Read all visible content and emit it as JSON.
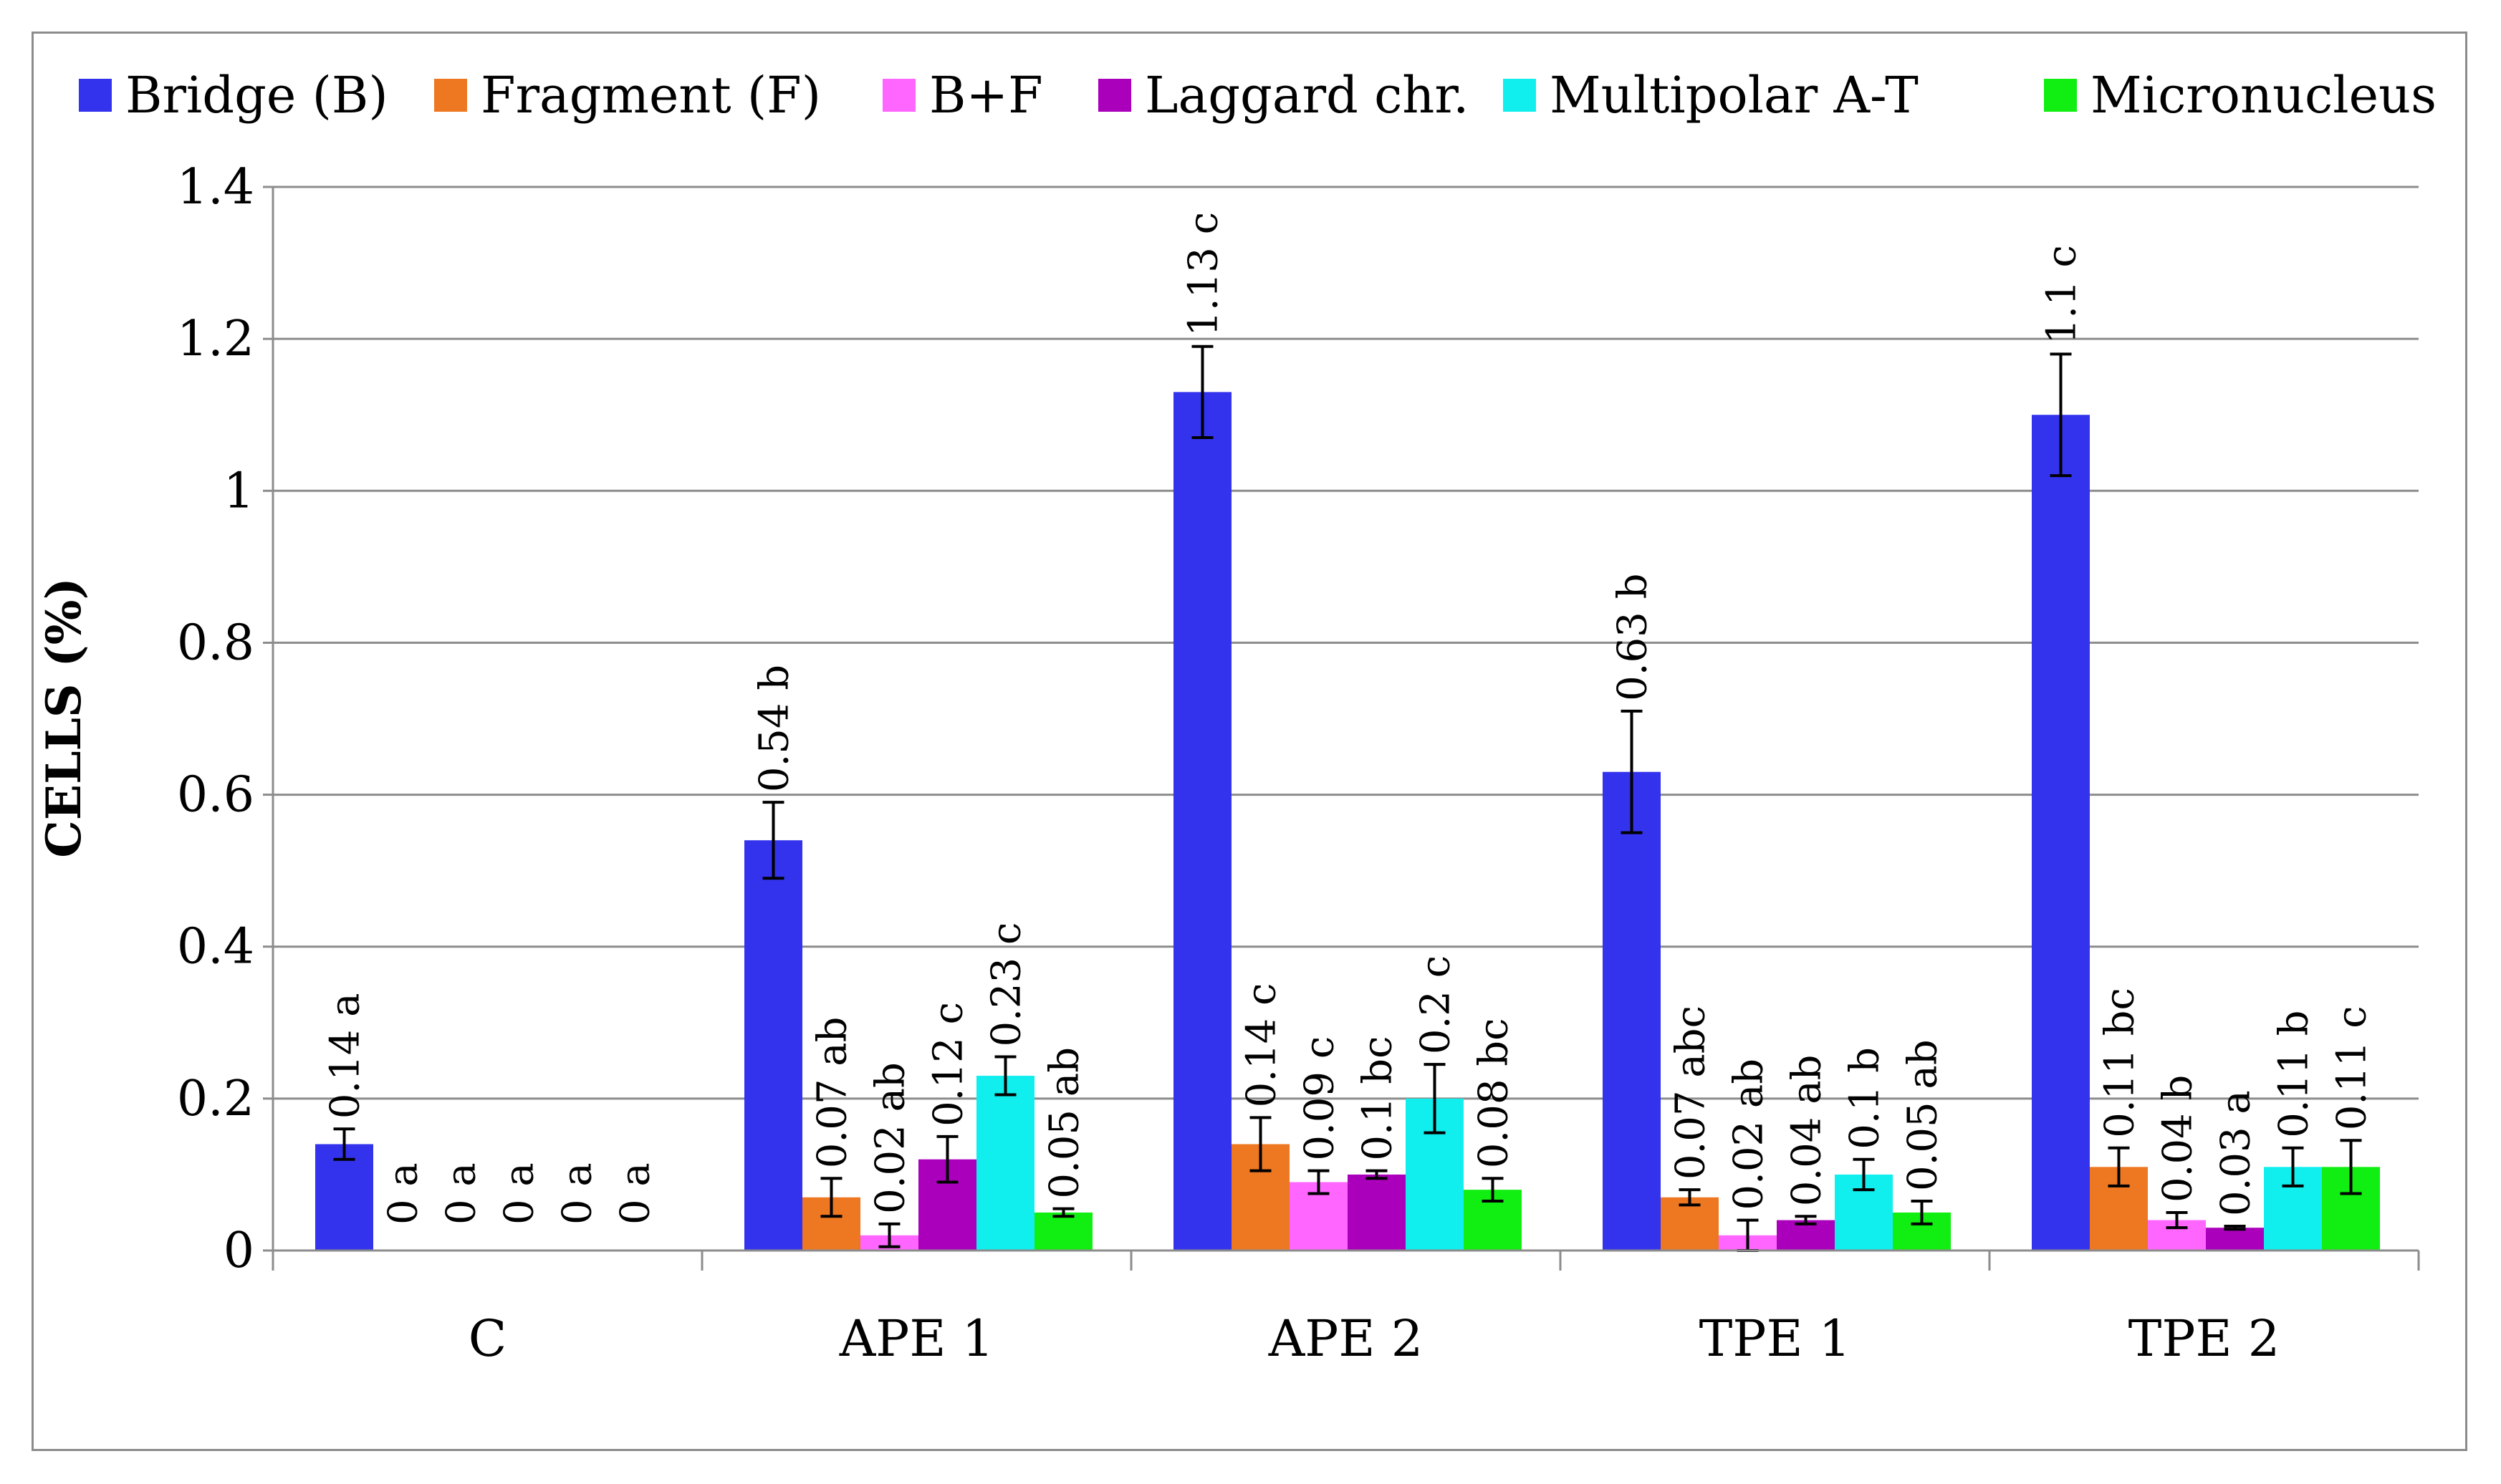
{
  "chart_data": {
    "type": "bar",
    "title": "",
    "xlabel": "",
    "ylabel": "CELLS  (%)",
    "ylim": [
      0,
      1.4
    ],
    "yticks": [
      0,
      0.2,
      0.4,
      0.6,
      0.8,
      1,
      1.2,
      1.4
    ],
    "ytick_labels": [
      "0",
      "0.2",
      "0.4",
      "0.6",
      "0.8",
      "1",
      "1.2",
      "1.4"
    ],
    "grid": true,
    "legend_position": "top",
    "categories": [
      "C",
      "APE 1",
      "APE 2",
      "TPE 1",
      "TPE 2"
    ],
    "series": [
      {
        "name": "Bridge (B)",
        "color": "#3333ee",
        "values": [
          0.14,
          0.54,
          1.13,
          0.63,
          1.1
        ],
        "errors": [
          0.02,
          0.05,
          0.06,
          0.08,
          0.08
        ],
        "labels": [
          "0.14 a",
          "0.54 b",
          "1.13 c",
          "0.63 b",
          "1.1 c"
        ]
      },
      {
        "name": "Fragment (F)",
        "color": "#ee7722",
        "values": [
          0,
          0.07,
          0.14,
          0.07,
          0.11
        ],
        "errors": [
          0,
          0.025,
          0.035,
          0.01,
          0.025
        ],
        "labels": [
          "0 a",
          "0.07 ab",
          "0.14 c",
          "0.07 abc",
          "0.11 bc"
        ]
      },
      {
        "name": "B+F",
        "color": "#ff66ff",
        "values": [
          0,
          0.02,
          0.09,
          0.02,
          0.04
        ],
        "errors": [
          0,
          0.015,
          0.015,
          0.02,
          0.01
        ],
        "labels": [
          "0 a",
          "0.02 ab",
          "0.09 c",
          "0.02 ab",
          "0.04 b"
        ]
      },
      {
        "name": "Laggard chr.",
        "color": "#aa00bb",
        "values": [
          0,
          0.12,
          0.1,
          0.04,
          0.03
        ],
        "errors": [
          0,
          0.03,
          0.005,
          0.005,
          0.002
        ],
        "labels": [
          "0 a",
          "0.12 c",
          "0.1 bc",
          "0.04 ab",
          "0.03 a"
        ]
      },
      {
        "name": "Multipolar A-T",
        "color": "#11eeee",
        "values": [
          0,
          0.23,
          0.2,
          0.1,
          0.11
        ],
        "errors": [
          0,
          0.025,
          0.045,
          0.02,
          0.025
        ],
        "labels": [
          "0 a",
          "0.23 c",
          "0.2 c",
          "0.1 b",
          "0.11 b"
        ]
      },
      {
        "name": "Micronucleus",
        "color": "#11ee11",
        "values": [
          0,
          0.05,
          0.08,
          0.05,
          0.11
        ],
        "errors": [
          0,
          0.005,
          0.015,
          0.015,
          0.035
        ],
        "labels": [
          "0 a",
          "0.05 ab",
          "0.08 bc",
          "0.05 ab",
          "0.11 c"
        ]
      }
    ]
  }
}
